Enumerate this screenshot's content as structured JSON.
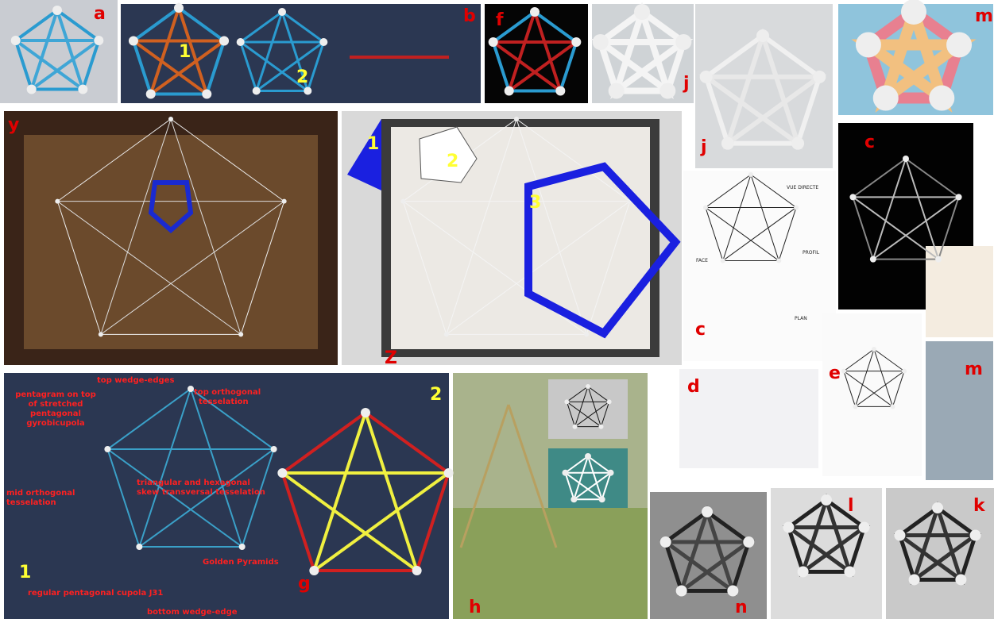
{
  "labels": [
    "a",
    "1",
    "2",
    "b",
    "f",
    "j",
    "j",
    "m",
    "y",
    "1",
    "2",
    "3",
    "Z",
    "c",
    "c",
    "m",
    "d",
    "e",
    "1",
    "2",
    "g",
    "h",
    "n",
    "l",
    "k"
  ],
  "annotations": [
    "pentagram on top",
    "of stretched",
    "pentagonal",
    "gyrobicupola",
    "top wedge-edges",
    "top orthogonal",
    "tesselation",
    "mid orthogonal",
    "tesselation",
    "triangular and hexagonal",
    "skew transversal tesselation",
    "Golden Pyramids",
    "regular pentagonal cupola J31",
    "bottom wedge-edge"
  ],
  "drawing_texts": [
    "VUE DIRECTE",
    "PROFIL",
    "FACE",
    "PLAN"
  ]
}
